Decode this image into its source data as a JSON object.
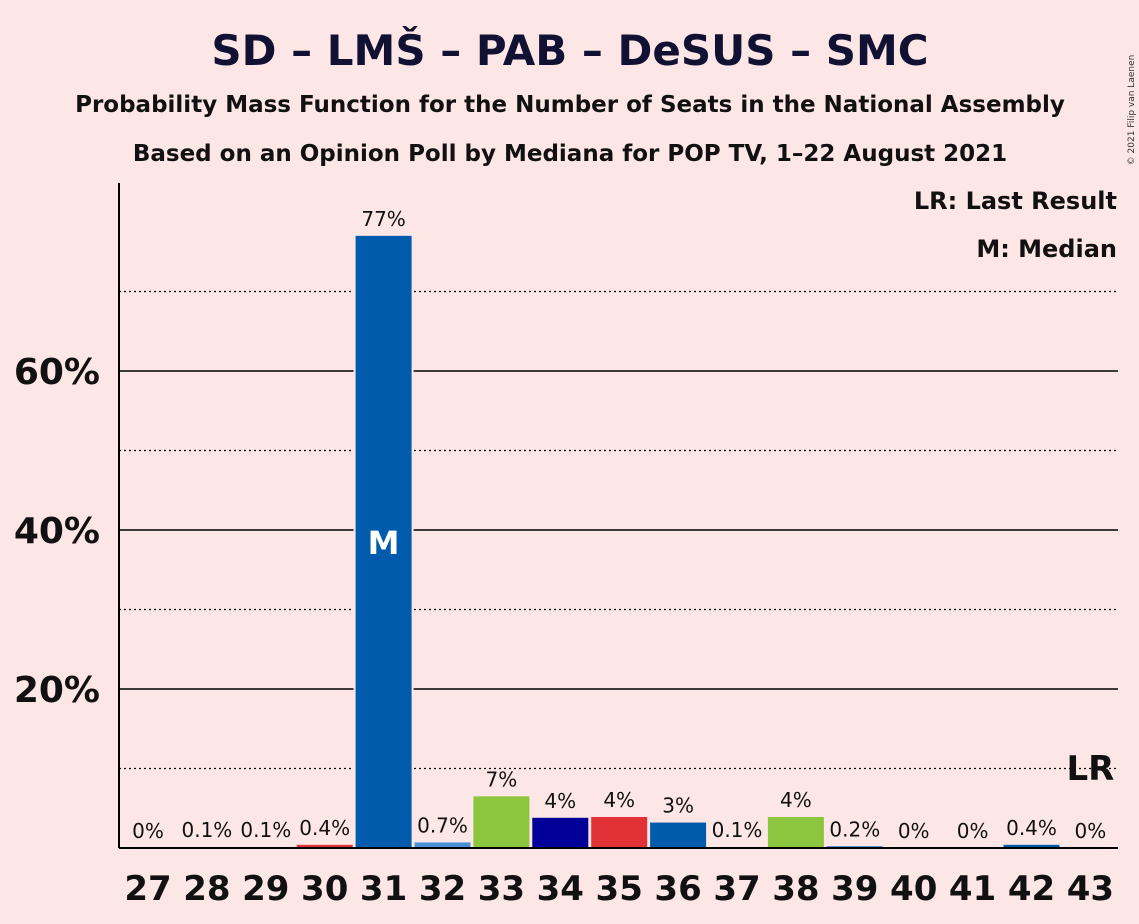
{
  "chart_data": {
    "type": "bar",
    "title": "SD – LMŠ – PAB – DeSUS – SMC",
    "subtitle_1": "Probability Mass Function for the Number of Seats in the National Assembly",
    "subtitle_2": "Based on an Opinion Poll by Mediana for POP TV, 1–22 August 2021",
    "copyright": "© 2021 Filip van Laenen",
    "legend": {
      "last_result": "LR: Last Result",
      "median": "M: Median",
      "position": "top-right"
    },
    "ylim": [
      0,
      84
    ],
    "y_ticks": [
      {
        "value": 20,
        "label": "20%"
      },
      {
        "value": 40,
        "label": "40%"
      },
      {
        "value": 60,
        "label": "60%"
      }
    ],
    "minor_gridlines": [
      10,
      30,
      50,
      70
    ],
    "categories": [
      "27",
      "28",
      "29",
      "30",
      "31",
      "32",
      "33",
      "34",
      "35",
      "36",
      "37",
      "38",
      "39",
      "40",
      "41",
      "42",
      "43"
    ],
    "values": [
      0,
      0.1,
      0.1,
      0.4,
      77,
      0.7,
      6.5,
      3.8,
      3.9,
      3.2,
      0.1,
      3.9,
      0.2,
      0,
      0,
      0.4,
      0
    ],
    "labels": [
      "0%",
      "0.1%",
      "0.1%",
      "0.4%",
      "77%",
      "0.7%",
      "7%",
      "4%",
      "4%",
      "3%",
      "0.1%",
      "4%",
      "0.2%",
      "0%",
      "0%",
      "0.4%",
      "0%"
    ],
    "colors": [
      "#005BAC",
      "#005BAC",
      "#005BAC",
      "#E03237",
      "#005BAC",
      "#4A90D9",
      "#8CC63F",
      "#000099",
      "#E03237",
      "#005BAC",
      "#005BAC",
      "#8CC63F",
      "#005BAC",
      "#005BAC",
      "#005BAC",
      "#005BAC",
      "#005BAC"
    ],
    "median": {
      "category": "31",
      "label": "M"
    },
    "last_result": {
      "category": "43",
      "label": "LR"
    }
  }
}
